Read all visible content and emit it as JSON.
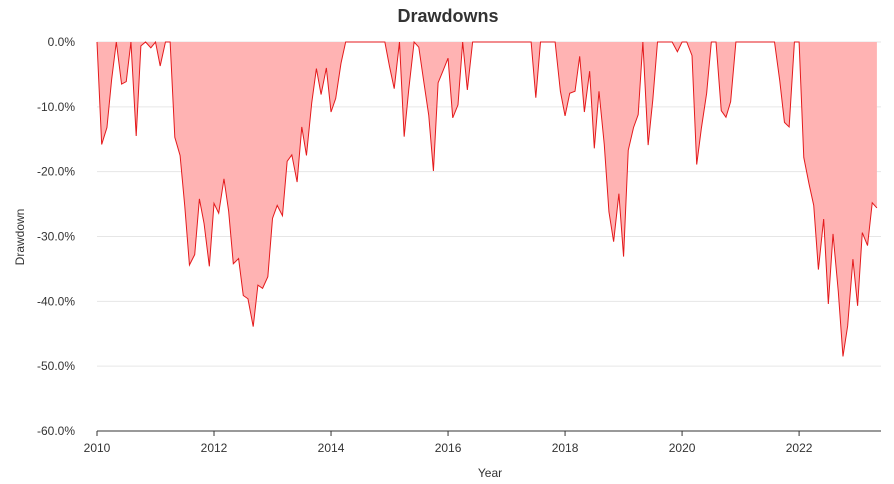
{
  "chart_data": {
    "type": "area",
    "title": "Drawdowns",
    "xlabel": "Year",
    "ylabel": "Drawdown",
    "xlim": [
      2010,
      2023.4
    ],
    "ylim": [
      -60,
      0
    ],
    "x_ticks": [
      2010,
      2012,
      2014,
      2016,
      2018,
      2020,
      2022
    ],
    "x_tick_labels": [
      "2010",
      "2012",
      "2014",
      "2016",
      "2018",
      "2020",
      "2022"
    ],
    "y_ticks": [
      0,
      -10,
      -20,
      -30,
      -40,
      -50,
      -60
    ],
    "y_tick_labels": [
      "0.0%",
      "-10.0%",
      "-20.0%",
      "-30.0%",
      "-40.0%",
      "-50.0%",
      "-60.0%"
    ],
    "grid": true,
    "colors": {
      "line": "#e41a1c",
      "fill": "#ffb3b3"
    },
    "series": [
      {
        "x": [
          2010.0,
          2010.08,
          2010.17,
          2010.25,
          2010.33,
          2010.42,
          2010.5,
          2010.58,
          2010.67,
          2010.75,
          2010.83,
          2010.92,
          2011.0,
          2011.08,
          2011.17,
          2011.25,
          2011.33,
          2011.42,
          2011.5,
          2011.58,
          2011.67,
          2011.75,
          2011.83,
          2011.92,
          2012.0,
          2012.08,
          2012.17,
          2012.25,
          2012.33,
          2012.42,
          2012.5,
          2012.58,
          2012.67,
          2012.75,
          2012.83,
          2012.92,
          2013.0,
          2013.08,
          2013.17,
          2013.25,
          2013.33,
          2013.42,
          2013.5,
          2013.58,
          2013.67,
          2013.75,
          2013.83,
          2013.92,
          2014.0,
          2014.08,
          2014.17,
          2014.25,
          2014.33,
          2014.42,
          2014.5,
          2014.58,
          2014.67,
          2014.75,
          2014.83,
          2014.92,
          2015.0,
          2015.08,
          2015.17,
          2015.25,
          2015.33,
          2015.42,
          2015.5,
          2015.58,
          2015.67,
          2015.75,
          2015.83,
          2015.92,
          2016.0,
          2016.08,
          2016.17,
          2016.25,
          2016.33,
          2016.42,
          2016.5,
          2016.58,
          2016.67,
          2016.75,
          2016.83,
          2016.92,
          2017.0,
          2017.08,
          2017.17,
          2017.25,
          2017.33,
          2017.42,
          2017.5,
          2017.58,
          2017.67,
          2017.75,
          2017.83,
          2017.92,
          2018.0,
          2018.08,
          2018.17,
          2018.25,
          2018.33,
          2018.42,
          2018.5,
          2018.58,
          2018.67,
          2018.75,
          2018.83,
          2018.92,
          2019.0,
          2019.08,
          2019.17,
          2019.25,
          2019.33,
          2019.42,
          2019.5,
          2019.58,
          2019.67,
          2019.75,
          2019.83,
          2019.92,
          2020.0,
          2020.08,
          2020.17,
          2020.25,
          2020.33,
          2020.42,
          2020.5,
          2020.58,
          2020.67,
          2020.75,
          2020.83,
          2020.92,
          2021.0,
          2021.08,
          2021.17,
          2021.25,
          2021.33,
          2021.42,
          2021.5,
          2021.58,
          2021.67,
          2021.75,
          2021.83,
          2021.92,
          2022.0,
          2022.08,
          2022.17,
          2022.25,
          2022.33,
          2022.42,
          2022.5,
          2022.58,
          2022.67,
          2022.75,
          2022.83,
          2022.92,
          2023.0,
          2023.08,
          2023.17,
          2023.25,
          2023.33
        ],
        "values": [
          0,
          -15.8,
          -13.2,
          -5.8,
          0,
          -6.5,
          -6.1,
          0,
          -14.5,
          -0.6,
          0,
          -0.9,
          0,
          -3.7,
          0,
          0,
          -14.7,
          -17.5,
          -25.3,
          -34.4,
          -32.8,
          -24.2,
          -28.0,
          -34.6,
          -24.9,
          -26.4,
          -21.1,
          -26.1,
          -34.2,
          -33.4,
          -39.1,
          -39.6,
          -43.9,
          -37.5,
          -38.0,
          -36.2,
          -27.2,
          -25.2,
          -26.8,
          -18.4,
          -17.4,
          -21.6,
          -13.1,
          -17.5,
          -9.4,
          -4.1,
          -8.1,
          -4.0,
          -10.8,
          -8.7,
          -3.3,
          0,
          0,
          0,
          0,
          0,
          0,
          0,
          0,
          0,
          -3.8,
          -7.2,
          0,
          -14.6,
          -7.2,
          0,
          -0.8,
          -5.8,
          -11.3,
          -19.9,
          -6.3,
          -4.3,
          -2.5,
          -11.7,
          -9.7,
          0,
          -7.4,
          0,
          0,
          0,
          0,
          0,
          0,
          0,
          0,
          0,
          0,
          0,
          0,
          0,
          -8.6,
          0,
          0,
          0,
          0,
          -7.6,
          -11.4,
          -7.9,
          -7.6,
          -2.2,
          -10.8,
          -4.5,
          -16.4,
          -7.6,
          -15.8,
          -26.2,
          -30.8,
          -23.4,
          -33.1,
          -16.7,
          -13.2,
          -11.2,
          0,
          -15.9,
          -8.9,
          0,
          0,
          0,
          0,
          -1.5,
          0,
          0,
          -2.1,
          -18.9,
          -13.3,
          -7.9,
          0,
          0,
          -10.6,
          -11.6,
          -9.2,
          0,
          0,
          0,
          0,
          0,
          0,
          0,
          0,
          0,
          -6.0,
          -12.4,
          -13.1,
          0,
          0,
          -17.8,
          -21.9,
          -25.2,
          -35.1,
          -27.3,
          -40.4,
          -29.6,
          -38.5,
          -48.5,
          -43.8,
          -33.5,
          -40.7,
          -29.4,
          -31.4,
          -24.8,
          -25.6
        ]
      }
    ]
  }
}
